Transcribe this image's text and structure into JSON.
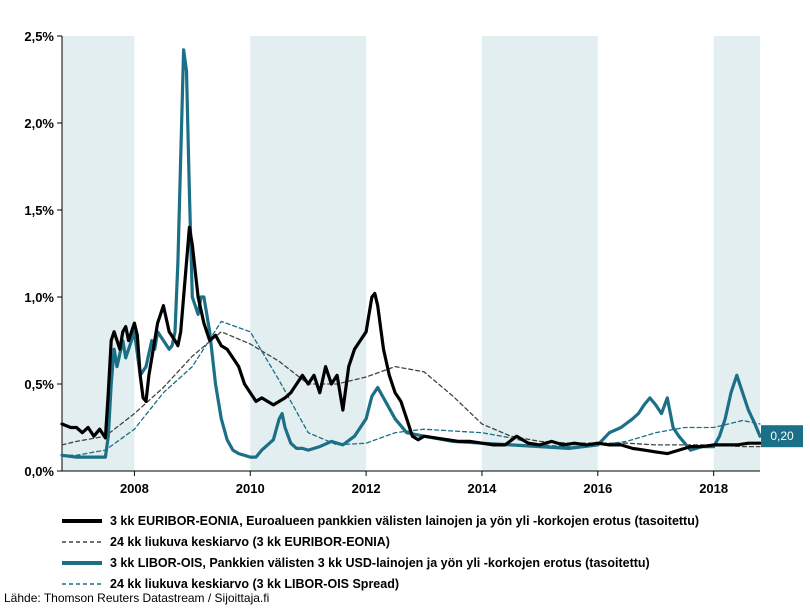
{
  "chart_data": {
    "type": "line",
    "title": "",
    "xlabel": "",
    "ylabel": "",
    "xlim": [
      2006.75,
      2018.8
    ],
    "ylim": [
      0,
      2.5
    ],
    "x_ticks": [
      {
        "value": 2008,
        "label": "2008"
      },
      {
        "value": 2010,
        "label": "2010"
      },
      {
        "value": 2012,
        "label": "2012"
      },
      {
        "value": 2014,
        "label": "2014"
      },
      {
        "value": 2016,
        "label": "2016"
      },
      {
        "value": 2018,
        "label": "2018"
      }
    ],
    "y_ticks": [
      {
        "value": 0,
        "label": "0,0%"
      },
      {
        "value": 0.5,
        "label": "0,5%"
      },
      {
        "value": 1.0,
        "label": "1,0%"
      },
      {
        "value": 1.5,
        "label": "1,5%"
      },
      {
        "value": 2.0,
        "label": "2,0%"
      },
      {
        "value": 2.5,
        "label": "2,5%"
      }
    ],
    "grid": false,
    "shaded_periods": [
      [
        2006.75,
        2008.0
      ],
      [
        2010.0,
        2012.0
      ],
      [
        2014.0,
        2016.0
      ],
      [
        2018.0,
        2018.8
      ]
    ],
    "shade_color": "#e2eef0",
    "end_label": {
      "text": "0,20",
      "value": 0.2
    },
    "legend_position": "bottom",
    "series": [
      {
        "name": "3 kk EURIBOR-EONIA, Euroalueen pankkien välisten lainojen ja yön yli -korkojen erotus (tasoitettu)",
        "color": "#000000",
        "style": "solid",
        "x": [
          2006.75,
          2006.9,
          2007.0,
          2007.1,
          2007.2,
          2007.3,
          2007.4,
          2007.5,
          2007.55,
          2007.6,
          2007.65,
          2007.7,
          2007.75,
          2007.8,
          2007.85,
          2007.9,
          2008.0,
          2008.05,
          2008.1,
          2008.15,
          2008.2,
          2008.25,
          2008.3,
          2008.4,
          2008.5,
          2008.6,
          2008.7,
          2008.75,
          2008.8,
          2008.85,
          2008.9,
          2008.95,
          2009.0,
          2009.1,
          2009.2,
          2009.3,
          2009.4,
          2009.5,
          2009.6,
          2009.7,
          2009.8,
          2009.9,
          2010.0,
          2010.1,
          2010.2,
          2010.3,
          2010.4,
          2010.5,
          2010.6,
          2010.7,
          2010.8,
          2010.9,
          2011.0,
          2011.1,
          2011.2,
          2011.3,
          2011.4,
          2011.5,
          2011.6,
          2011.7,
          2011.8,
          2011.9,
          2012.0,
          2012.05,
          2012.1,
          2012.15,
          2012.2,
          2012.3,
          2012.4,
          2012.5,
          2012.6,
          2012.7,
          2012.8,
          2012.9,
          2013.0,
          2013.2,
          2013.4,
          2013.6,
          2013.8,
          2014.0,
          2014.2,
          2014.4,
          2014.6,
          2014.8,
          2015.0,
          2015.2,
          2015.4,
          2015.6,
          2015.8,
          2016.0,
          2016.2,
          2016.4,
          2016.6,
          2016.8,
          2017.0,
          2017.2,
          2017.4,
          2017.6,
          2017.8,
          2018.0,
          2018.2,
          2018.4,
          2018.6,
          2018.8
        ],
        "values": [
          0.27,
          0.25,
          0.25,
          0.22,
          0.25,
          0.2,
          0.24,
          0.19,
          0.45,
          0.75,
          0.8,
          0.75,
          0.7,
          0.8,
          0.83,
          0.75,
          0.85,
          0.78,
          0.55,
          0.42,
          0.4,
          0.55,
          0.65,
          0.85,
          0.95,
          0.8,
          0.75,
          0.72,
          0.8,
          1.0,
          1.2,
          1.4,
          1.3,
          1.0,
          0.85,
          0.75,
          0.78,
          0.72,
          0.7,
          0.65,
          0.6,
          0.5,
          0.45,
          0.4,
          0.42,
          0.4,
          0.38,
          0.4,
          0.42,
          0.45,
          0.5,
          0.55,
          0.5,
          0.55,
          0.45,
          0.6,
          0.5,
          0.55,
          0.35,
          0.6,
          0.7,
          0.75,
          0.8,
          0.9,
          1.0,
          1.02,
          0.95,
          0.7,
          0.55,
          0.45,
          0.4,
          0.3,
          0.2,
          0.18,
          0.2,
          0.19,
          0.18,
          0.17,
          0.17,
          0.16,
          0.15,
          0.15,
          0.2,
          0.16,
          0.15,
          0.17,
          0.15,
          0.16,
          0.15,
          0.16,
          0.15,
          0.15,
          0.13,
          0.12,
          0.11,
          0.1,
          0.12,
          0.14,
          0.14,
          0.15,
          0.15,
          0.15,
          0.16,
          0.16
        ]
      },
      {
        "name": "24 kk liukuva keskiarvo (3 kk EURIBOR-EONIA)",
        "color": "#444444",
        "style": "dashed",
        "x": [
          2006.75,
          2007.0,
          2007.5,
          2008.0,
          2008.5,
          2009.0,
          2009.5,
          2010.0,
          2010.5,
          2011.0,
          2011.5,
          2012.0,
          2012.5,
          2013.0,
          2013.5,
          2014.0,
          2014.5,
          2015.0,
          2015.5,
          2016.0,
          2016.5,
          2017.0,
          2017.5,
          2018.0,
          2018.5,
          2018.8
        ],
        "values": [
          0.15,
          0.17,
          0.2,
          0.33,
          0.48,
          0.66,
          0.8,
          0.73,
          0.63,
          0.5,
          0.5,
          0.54,
          0.6,
          0.57,
          0.43,
          0.27,
          0.2,
          0.17,
          0.16,
          0.16,
          0.16,
          0.15,
          0.15,
          0.15,
          0.14,
          0.14
        ]
      },
      {
        "name": "3 kk LIBOR-OIS, Pankkien välisten 3 kk USD-lainojen ja yön yli -korkojen erotus (tasoitettu)",
        "color": "#1b6f86",
        "style": "solid",
        "x": [
          2006.75,
          2007.0,
          2007.5,
          2007.55,
          2007.6,
          2007.65,
          2007.7,
          2007.8,
          2007.85,
          2007.9,
          2008.0,
          2008.1,
          2008.2,
          2008.3,
          2008.35,
          2008.4,
          2008.5,
          2008.6,
          2008.65,
          2008.7,
          2008.75,
          2008.8,
          2008.85,
          2008.9,
          2008.95,
          2009.0,
          2009.1,
          2009.15,
          2009.2,
          2009.3,
          2009.4,
          2009.5,
          2009.6,
          2009.7,
          2009.8,
          2009.9,
          2010.0,
          2010.1,
          2010.2,
          2010.3,
          2010.4,
          2010.5,
          2010.55,
          2010.6,
          2010.7,
          2010.8,
          2010.9,
          2011.0,
          2011.2,
          2011.4,
          2011.6,
          2011.8,
          2012.0,
          2012.1,
          2012.2,
          2012.3,
          2012.5,
          2012.7,
          2013.0,
          2013.5,
          2014.0,
          2014.5,
          2015.0,
          2015.5,
          2016.0,
          2016.2,
          2016.4,
          2016.6,
          2016.7,
          2016.8,
          2016.9,
          2017.0,
          2017.1,
          2017.2,
          2017.3,
          2017.4,
          2017.6,
          2017.8,
          2018.0,
          2018.1,
          2018.2,
          2018.3,
          2018.4,
          2018.5,
          2018.6,
          2018.7,
          2018.8
        ],
        "values": [
          0.09,
          0.08,
          0.08,
          0.2,
          0.5,
          0.7,
          0.6,
          0.75,
          0.65,
          0.7,
          0.8,
          0.55,
          0.6,
          0.75,
          0.7,
          0.8,
          0.75,
          0.7,
          0.72,
          0.8,
          1.2,
          1.8,
          2.42,
          2.3,
          1.6,
          1.0,
          0.9,
          1.0,
          1.0,
          0.8,
          0.5,
          0.3,
          0.18,
          0.12,
          0.1,
          0.09,
          0.08,
          0.08,
          0.12,
          0.15,
          0.18,
          0.3,
          0.33,
          0.25,
          0.16,
          0.13,
          0.13,
          0.12,
          0.14,
          0.17,
          0.15,
          0.2,
          0.3,
          0.43,
          0.48,
          0.42,
          0.3,
          0.22,
          0.2,
          0.17,
          0.16,
          0.15,
          0.14,
          0.13,
          0.15,
          0.22,
          0.25,
          0.3,
          0.33,
          0.38,
          0.42,
          0.38,
          0.33,
          0.42,
          0.25,
          0.2,
          0.12,
          0.14,
          0.14,
          0.2,
          0.3,
          0.45,
          0.55,
          0.45,
          0.35,
          0.28,
          0.2
        ]
      },
      {
        "name": "24 kk liukuva keskiarvo (3 kk LIBOR-OIS Spread)",
        "color": "#1b6f86",
        "style": "dashed",
        "x": [
          2006.75,
          2007.0,
          2007.5,
          2008.0,
          2008.5,
          2009.0,
          2009.5,
          2010.0,
          2010.5,
          2011.0,
          2011.5,
          2012.0,
          2012.5,
          2013.0,
          2013.5,
          2014.0,
          2014.5,
          2015.0,
          2015.5,
          2016.0,
          2016.5,
          2017.0,
          2017.5,
          2018.0,
          2018.5,
          2018.8
        ],
        "values": [
          0.09,
          0.09,
          0.12,
          0.24,
          0.45,
          0.6,
          0.86,
          0.8,
          0.52,
          0.22,
          0.15,
          0.16,
          0.22,
          0.24,
          0.23,
          0.22,
          0.19,
          0.15,
          0.14,
          0.15,
          0.17,
          0.22,
          0.25,
          0.25,
          0.29,
          0.27
        ]
      }
    ]
  },
  "source": "Lähde: Thomson Reuters Datastream / Sijoittaja.fi"
}
